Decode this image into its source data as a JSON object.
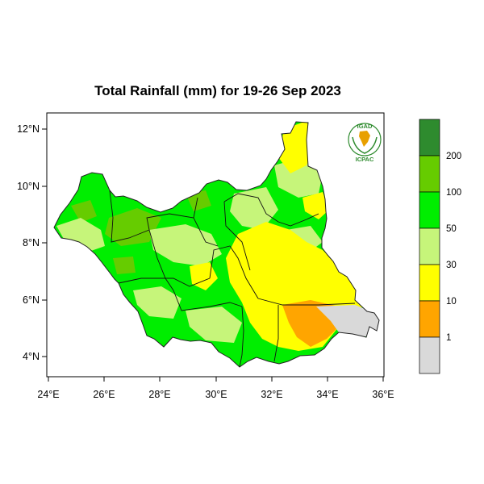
{
  "title": "Total Rainfall (mm) for 19-26 Sep 2023",
  "lat_ticks": [
    "12°N",
    "10°N",
    "8°N",
    "6°N",
    "4°N"
  ],
  "lon_ticks": [
    "24°E",
    "26°E",
    "28°E",
    "30°E",
    "32°E",
    "34°E",
    "36°E"
  ],
  "legend": {
    "classes": [
      {
        "range": ">200",
        "color": "#2e8b2e"
      },
      {
        "range": "100-200",
        "color": "#66cc00"
      },
      {
        "range": "50-100",
        "color": "#00ee00"
      },
      {
        "range": "30-50",
        "color": "#c6f57a"
      },
      {
        "range": "10-30",
        "color": "#ffff00"
      },
      {
        "range": "1-10",
        "color": "#ffa500"
      },
      {
        "range": "<1",
        "color": "#d9d9d9"
      }
    ],
    "boundary_labels": [
      "200",
      "100",
      "50",
      "30",
      "10",
      "1"
    ]
  },
  "logo": {
    "top_text": "IGAD",
    "bottom_text": "ICPAC"
  }
}
